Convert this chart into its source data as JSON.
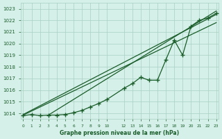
{
  "background_color": "#d4f0e8",
  "grid_color": "#aacfc4",
  "line_color": "#1a5c2a",
  "text_color": "#1a5c2a",
  "xlabel": "Graphe pression niveau de la mer (hPa)",
  "ylim": [
    1013.5,
    1023.5
  ],
  "yticks": [
    1014,
    1015,
    1016,
    1017,
    1018,
    1019,
    1020,
    1021,
    1022,
    1023
  ],
  "xlim": [
    -0.3,
    23.3
  ],
  "xtick_positions": [
    0,
    1,
    2,
    3,
    4,
    5,
    6,
    7,
    8,
    9,
    10,
    12,
    13,
    14,
    15,
    16,
    17,
    18,
    19,
    20,
    21,
    22,
    23
  ],
  "x_labels": [
    "0",
    "1",
    "2",
    "3",
    "4",
    "5",
    "6",
    "7",
    "8",
    "9",
    "10",
    "12",
    "13",
    "14",
    "15",
    "16",
    "17",
    "18",
    "19",
    "20",
    "21",
    "22",
    "23"
  ],
  "data_line": {
    "x": [
      0,
      1,
      2,
      3,
      4,
      5,
      6,
      7,
      8,
      9,
      10,
      12,
      13,
      14,
      15,
      16,
      17,
      18,
      19,
      20,
      21,
      22,
      23
    ],
    "y": [
      1013.8,
      1013.9,
      1013.8,
      1013.85,
      1013.85,
      1013.9,
      1014.05,
      1014.25,
      1014.55,
      1014.85,
      1015.2,
      1016.15,
      1016.55,
      1017.1,
      1016.85,
      1016.85,
      1018.6,
      1020.3,
      1019.0,
      1021.5,
      1022.0,
      1022.2,
      1022.6
    ]
  },
  "linear_line1": {
    "x": [
      0,
      23
    ],
    "y": [
      1013.9,
      1022.5
    ]
  },
  "linear_line2": {
    "x": [
      0,
      23
    ],
    "y": [
      1013.85,
      1021.8
    ]
  },
  "linear_line3": {
    "x": [
      3,
      23
    ],
    "y": [
      1013.85,
      1022.8
    ]
  }
}
